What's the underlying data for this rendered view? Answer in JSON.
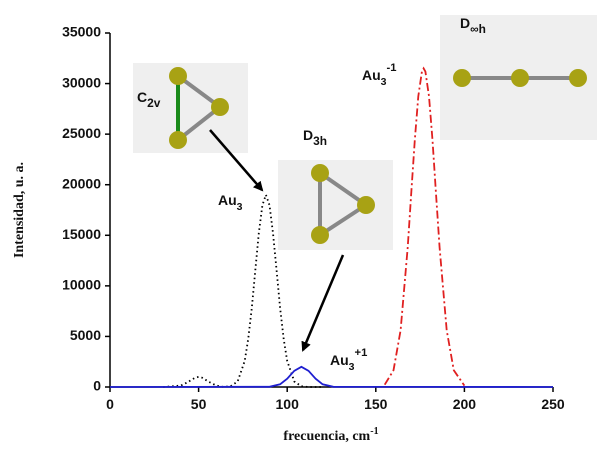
{
  "chart_data": {
    "type": "line",
    "y_label": "Intensidad, u. a.",
    "x_label": {
      "text": "frecuencia, cm",
      "sup": "-1"
    },
    "xlim": [
      0,
      250
    ],
    "xticks": [
      0,
      50,
      100,
      150,
      200,
      250
    ],
    "ylim": [
      0,
      35000
    ],
    "yticks": [
      0,
      5000,
      10000,
      15000,
      20000,
      25000,
      30000,
      35000
    ],
    "series": [
      {
        "color": "#000000",
        "dash": "dotted",
        "x": [
          30,
          40,
          44,
          48,
          50,
          52,
          56,
          60,
          64,
          68,
          72,
          76,
          78,
          80,
          82,
          84,
          86,
          88,
          90,
          92,
          94,
          96,
          98,
          100,
          104,
          108,
          112,
          120
        ],
        "values": [
          0,
          135,
          490,
          920,
          1000,
          920,
          490,
          135,
          10,
          70,
          540,
          2570,
          4740,
          7810,
          11530,
          15210,
          17970,
          19000,
          17970,
          15210,
          11530,
          7810,
          4740,
          2570,
          540,
          70,
          0,
          0
        ]
      },
      {
        "color": "#1f1fd0",
        "dash": "solid",
        "x": [
          0,
          90,
          96,
          100,
          104,
          108,
          112,
          116,
          120,
          126,
          250
        ],
        "values": [
          0,
          20,
          270,
          820,
          1600,
          2000,
          1600,
          820,
          270,
          20,
          0
        ]
      },
      {
        "color": "#e02020",
        "dash": "dashdot",
        "x": [
          155,
          160,
          164,
          168,
          170,
          172,
          174,
          176,
          177,
          178,
          180,
          182,
          184,
          186,
          190,
          194,
          200
        ],
        "values": [
          225,
          1650,
          5610,
          13780,
          19110,
          24410,
          28740,
          31180,
          31500,
          31180,
          28740,
          24410,
          19110,
          13780,
          5610,
          1650,
          140
        ]
      }
    ],
    "annotations": [
      {
        "base": "Au",
        "sub": "3",
        "color": "#111111"
      },
      {
        "base": "Au",
        "sub": "3",
        "sup": "-1",
        "color": "#e02020"
      },
      {
        "base": "Au",
        "sub": "3",
        "sup": "+1",
        "color": "#1f1fd0"
      },
      {
        "base": "C",
        "sub": "2v",
        "color": "#111111"
      },
      {
        "base": "D",
        "sub": "3h",
        "color": "#111111"
      },
      {
        "base": "D",
        "sub": "∞h",
        "color": "#111111"
      }
    ]
  }
}
